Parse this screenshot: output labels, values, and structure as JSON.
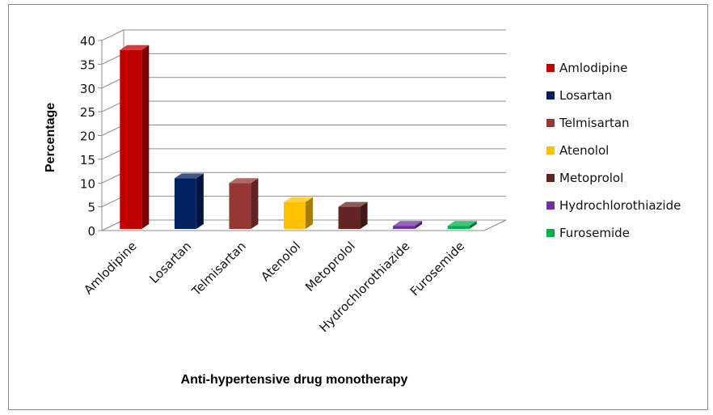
{
  "chart_data": {
    "type": "bar",
    "categories": [
      "Amlodipine",
      "Losartan",
      "Telmisartan",
      "Atenolol",
      "Metoprolol",
      "Hydrochlorothiazide",
      "Furosemide"
    ],
    "values": [
      38,
      11,
      10,
      6,
      5,
      1,
      1
    ],
    "colors": [
      "#c00000",
      "#002060",
      "#953735",
      "#ffc000",
      "#632523",
      "#7030a0",
      "#00b050"
    ],
    "xlabel": "Anti-hypertensive drug monotherapy",
    "ylabel": "Percentage",
    "ylim": [
      0,
      40
    ],
    "yticks": [
      0,
      5,
      10,
      15,
      20,
      25,
      30,
      35,
      40
    ],
    "grid": true,
    "legend": "right",
    "style": "3d-bar"
  }
}
